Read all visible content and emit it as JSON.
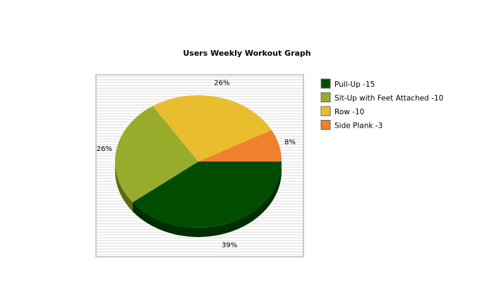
{
  "chart_data": {
    "type": "pie",
    "title": "Users Weekly Workout Graph",
    "slices": [
      {
        "name": "Pull-Up -15",
        "value": 15,
        "percent_label": "39%",
        "color": "#004d00",
        "side_color": "#002e00"
      },
      {
        "name": "Sit-Up with Feet Attached -10",
        "value": 10,
        "percent_label": "26%",
        "color": "#99ab2b",
        "side_color": "#5e6b14"
      },
      {
        "name": "Row -10",
        "value": 10,
        "percent_label": "26%",
        "color": "#e8be2e",
        "side_color": "#a8861a"
      },
      {
        "name": "Side Plank -3",
        "value": 3,
        "percent_label": "8%",
        "color": "#ef812d",
        "side_color": "#b55a15"
      }
    ],
    "style": "3d",
    "legend_position": "right",
    "plot_background": "striped-gray"
  }
}
